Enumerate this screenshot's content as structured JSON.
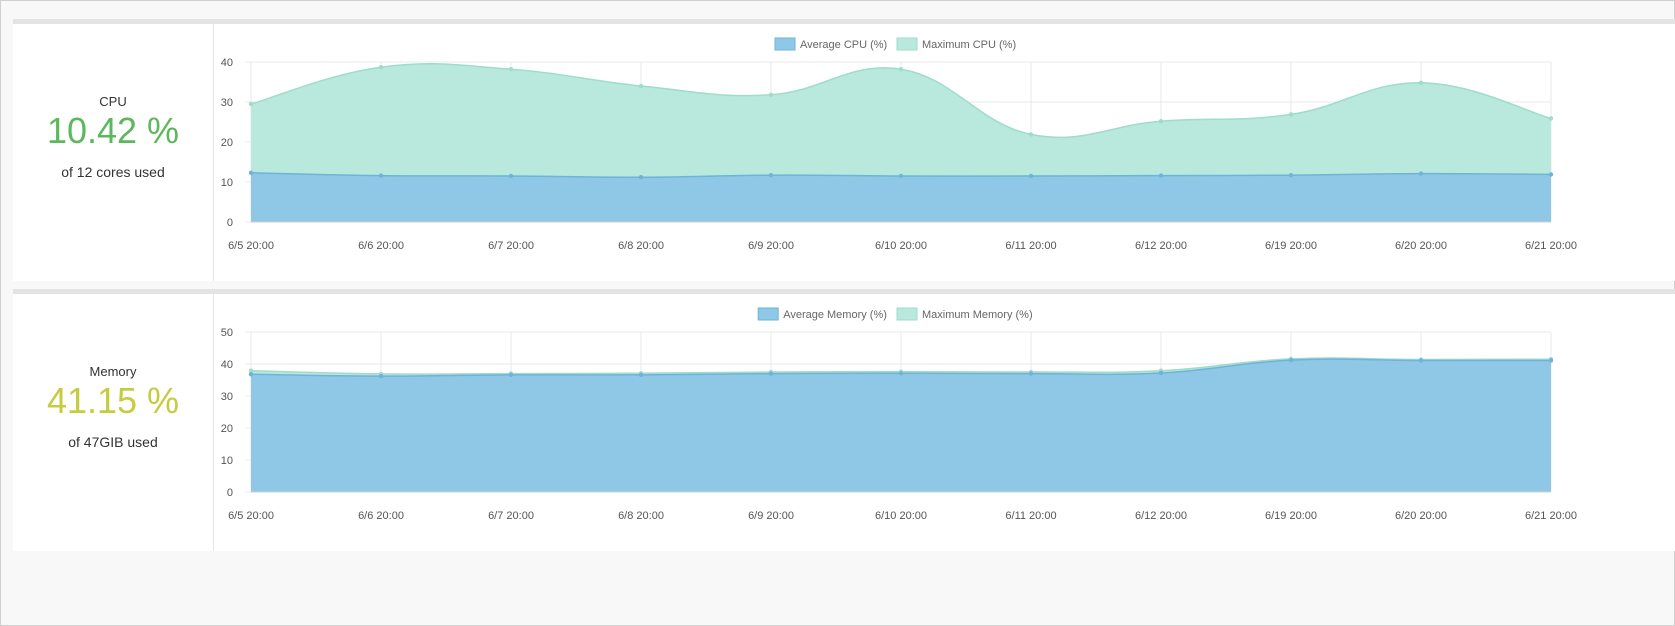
{
  "colors": {
    "average_fill": "#8fc8e6",
    "average_stroke": "#6fb3d9",
    "maximum_fill": "#b8e9dc",
    "maximum_stroke": "#9fdcca",
    "cpu_value": "#5cb85c",
    "memory_value": "#c5cc40"
  },
  "cpu": {
    "label": "CPU",
    "value": "10.42 %",
    "sub": "of 12 cores used"
  },
  "memory": {
    "label": "Memory",
    "value": "41.15 %",
    "sub": "of 47GIB used"
  },
  "chart_data": [
    {
      "type": "area",
      "legend": [
        "Average CPU (%)",
        "Maximum CPU (%)"
      ],
      "legend_position": "top-center",
      "categories": [
        "6/5 20:00",
        "6/6 20:00",
        "6/7 20:00",
        "6/8 20:00",
        "6/9 20:00",
        "6/10 20:00",
        "6/11 20:00",
        "6/12 20:00",
        "6/19 20:00",
        "6/20 20:00",
        "6/21 20:00"
      ],
      "series": [
        {
          "name": "Average CPU (%)",
          "values": [
            12.3,
            11.6,
            11.5,
            11.2,
            11.7,
            11.5,
            11.5,
            11.6,
            11.7,
            12.1,
            11.9
          ]
        },
        {
          "name": "Maximum CPU (%)",
          "values": [
            29.5,
            38.7,
            38.2,
            34.0,
            31.8,
            38.2,
            21.9,
            25.2,
            26.9,
            34.8,
            25.9
          ]
        }
      ],
      "ylim": [
        0,
        40
      ],
      "yticks": [
        0,
        10,
        20,
        30,
        40
      ],
      "grid": true
    },
    {
      "type": "area",
      "legend": [
        "Average Memory (%)",
        "Maximum Memory (%)"
      ],
      "legend_position": "top-center",
      "categories": [
        "6/5 20:00",
        "6/6 20:00",
        "6/7 20:00",
        "6/8 20:00",
        "6/9 20:00",
        "6/10 20:00",
        "6/11 20:00",
        "6/12 20:00",
        "6/19 20:00",
        "6/20 20:00",
        "6/21 20:00"
      ],
      "series": [
        {
          "name": "Average Memory (%)",
          "values": [
            36.8,
            36.2,
            36.6,
            36.6,
            37.0,
            37.1,
            37.0,
            37.2,
            41.2,
            41.1,
            41.1
          ]
        },
        {
          "name": "Maximum Memory (%)",
          "values": [
            37.9,
            36.9,
            37.0,
            37.1,
            37.5,
            37.6,
            37.5,
            37.9,
            41.6,
            41.4,
            41.5
          ]
        }
      ],
      "ylim": [
        0,
        50
      ],
      "yticks": [
        0,
        10,
        20,
        30,
        40,
        50
      ],
      "grid": true
    }
  ]
}
